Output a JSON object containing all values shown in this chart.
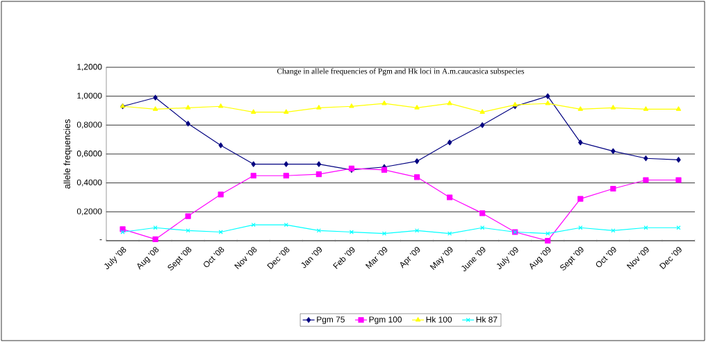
{
  "chart_data": {
    "type": "line",
    "title": "Change in allele frequencies of Pgm and Hk loci in A.m.caucasica subspecies",
    "ylabel": "allele frequencies",
    "categories": [
      "July '08",
      "Aug '08",
      "Sept '08",
      "Oct '08",
      "Nov '08",
      "Dec '08",
      "Jan '09",
      "Feb '09",
      "Mar '09",
      "Apr '09",
      "May '09",
      "June '09",
      "July '09",
      "Aug '09",
      "Sept '09",
      "Oct '09",
      "Nov '09",
      "Dec '09"
    ],
    "series": [
      {
        "name": "Pgm 75",
        "color": "#000080",
        "marker": "diamond",
        "values": [
          0.93,
          0.99,
          0.81,
          0.66,
          0.53,
          0.53,
          0.53,
          0.49,
          0.51,
          0.55,
          0.68,
          0.8,
          0.93,
          1.0,
          0.68,
          0.62,
          0.57,
          0.56
        ]
      },
      {
        "name": "Pgm 100",
        "color": "#ff00ff",
        "marker": "square",
        "values": [
          0.08,
          0.01,
          0.17,
          0.32,
          0.45,
          0.45,
          0.46,
          0.5,
          0.49,
          0.44,
          0.3,
          0.19,
          0.06,
          0.0,
          0.29,
          0.36,
          0.42,
          0.42
        ]
      },
      {
        "name": "Hk 100",
        "color": "#ffff00",
        "marker": "triangle",
        "values": [
          0.93,
          0.91,
          0.92,
          0.93,
          0.89,
          0.89,
          0.92,
          0.93,
          0.95,
          0.92,
          0.95,
          0.89,
          0.94,
          0.95,
          0.91,
          0.92,
          0.91,
          0.91
        ]
      },
      {
        "name": "Hk 87",
        "color": "#00ffff",
        "marker": "cross",
        "values": [
          0.06,
          0.09,
          0.07,
          0.06,
          0.11,
          0.11,
          0.07,
          0.06,
          0.05,
          0.07,
          0.05,
          0.09,
          0.06,
          0.05,
          0.09,
          0.07,
          0.09,
          0.09
        ]
      }
    ],
    "ylim": [
      0,
      1.2
    ],
    "yticks": [
      {
        "value": 0,
        "label": "-"
      },
      {
        "value": 0.2,
        "label": "0,2000"
      },
      {
        "value": 0.4,
        "label": "0,4000"
      },
      {
        "value": 0.6,
        "label": "0,6000"
      },
      {
        "value": 0.8,
        "label": "0,8000"
      },
      {
        "value": 1.0,
        "label": "1,0000"
      },
      {
        "value": 1.2,
        "label": "1,2000"
      }
    ],
    "grid": "y",
    "legend": "bottom",
    "line_style": "solid"
  }
}
